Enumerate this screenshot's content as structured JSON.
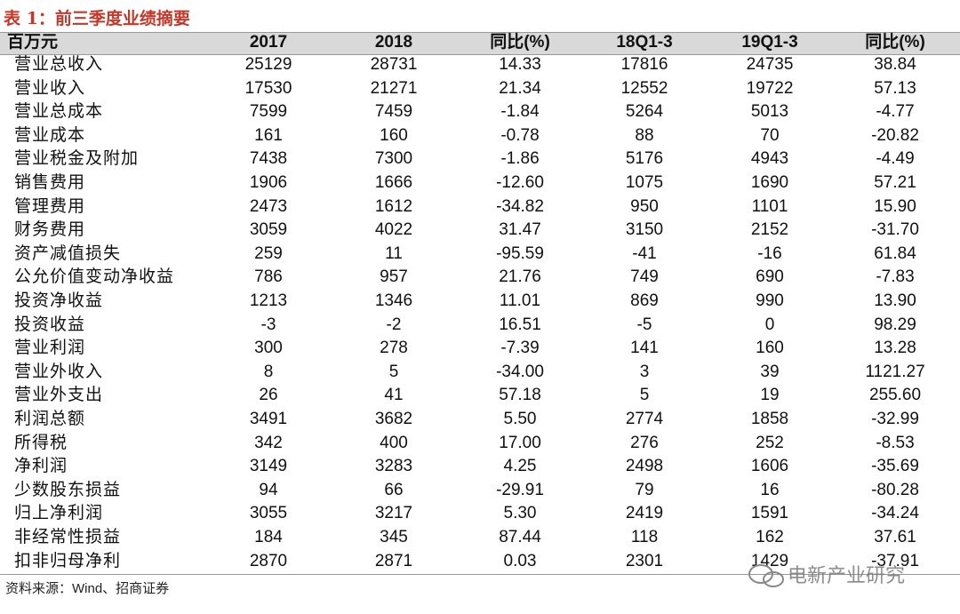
{
  "title": "表 1：前三季度业绩摘要",
  "table": {
    "header": [
      "百万元",
      "2017",
      "2018",
      "同比(%)",
      "18Q1-3",
      "19Q1-3",
      "同比(%)"
    ],
    "rows": [
      [
        "营业总收入",
        "25129",
        "28731",
        "14.33",
        "17816",
        "24735",
        "38.84"
      ],
      [
        "营业收入",
        "17530",
        "21271",
        "21.34",
        "12552",
        "19722",
        "57.13"
      ],
      [
        "营业总成本",
        "7599",
        "7459",
        "-1.84",
        "5264",
        "5013",
        "-4.77"
      ],
      [
        "营业成本",
        "161",
        "160",
        "-0.78",
        "88",
        "70",
        "-20.82"
      ],
      [
        "营业税金及附加",
        "7438",
        "7300",
        "-1.86",
        "5176",
        "4943",
        "-4.49"
      ],
      [
        "销售费用",
        "1906",
        "1666",
        "-12.60",
        "1075",
        "1690",
        "57.21"
      ],
      [
        "管理费用",
        "2473",
        "1612",
        "-34.82",
        "950",
        "1101",
        "15.90"
      ],
      [
        "财务费用",
        "3059",
        "4022",
        "31.47",
        "3150",
        "2152",
        "-31.70"
      ],
      [
        "资产减值损失",
        "259",
        "11",
        "-95.59",
        "-41",
        "-16",
        "61.84"
      ],
      [
        "公允价值变动净收益",
        "786",
        "957",
        "21.76",
        "749",
        "690",
        "-7.83"
      ],
      [
        "投资净收益",
        "1213",
        "1346",
        "11.01",
        "869",
        "990",
        "13.90"
      ],
      [
        "投资收益",
        "-3",
        "-2",
        "16.51",
        "-5",
        "0",
        "98.29"
      ],
      [
        "营业利润",
        "300",
        "278",
        "-7.39",
        "141",
        "160",
        "13.28"
      ],
      [
        "营业外收入",
        "8",
        "5",
        "-34.00",
        "3",
        "39",
        "1121.27"
      ],
      [
        "营业外支出",
        "26",
        "41",
        "57.18",
        "5",
        "19",
        "255.60"
      ],
      [
        "利润总额",
        "3491",
        "3682",
        "5.50",
        "2774",
        "1858",
        "-32.99"
      ],
      [
        "所得税",
        "342",
        "400",
        "17.00",
        "276",
        "252",
        "-8.53"
      ],
      [
        "净利润",
        "3149",
        "3283",
        "4.25",
        "2498",
        "1606",
        "-35.69"
      ],
      [
        "少数股东损益",
        "94",
        "66",
        "-29.91",
        "79",
        "16",
        "-80.28"
      ],
      [
        "归上净利润",
        "3055",
        "3217",
        "5.30",
        "2419",
        "1591",
        "-34.24"
      ],
      [
        "非经常性损益",
        "184",
        "345",
        "87.44",
        "118",
        "162",
        "37.61"
      ],
      [
        "扣非归母净利",
        "2870",
        "2871",
        "0.03",
        "2301",
        "1429",
        "-37.91"
      ]
    ]
  },
  "source": "资料来源：Wind、招商证券",
  "watermark": "电新产业研究"
}
